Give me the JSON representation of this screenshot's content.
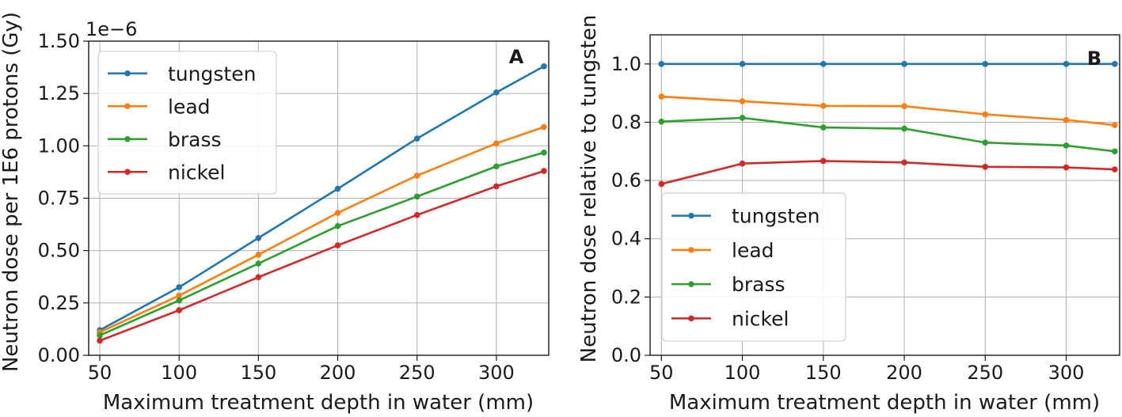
{
  "chart_data": [
    {
      "type": "line",
      "panel_label": "A",
      "x": [
        50,
        100,
        150,
        200,
        250,
        300,
        330
      ],
      "xlim": [
        43,
        333
      ],
      "ylim": [
        0,
        1.5
      ],
      "xticks": [
        "50",
        "100",
        "150",
        "200",
        "250",
        "300"
      ],
      "yticks": [
        "0.00",
        "0.25",
        "0.50",
        "0.75",
        "1.00",
        "1.25",
        "1.50"
      ],
      "y_offset_label": "1e−6",
      "xlabel": "Maximum treatment depth in water (mm)",
      "ylabel": "Neutron dose per 1E6 protons (Gy)",
      "grid": true,
      "legend_position": "upper-left",
      "series": [
        {
          "name": "tungsten",
          "color": "#1f77b4",
          "values": [
            0.12,
            0.325,
            0.56,
            0.795,
            1.035,
            1.255,
            1.38
          ]
        },
        {
          "name": "lead",
          "color": "#ff7f0e",
          "values": [
            0.11,
            0.285,
            0.48,
            0.68,
            0.858,
            1.012,
            1.09
          ]
        },
        {
          "name": "brass",
          "color": "#2ca02c",
          "values": [
            0.095,
            0.262,
            0.438,
            0.617,
            0.758,
            0.902,
            0.968
          ]
        },
        {
          "name": "nickel",
          "color": "#d62728",
          "values": [
            0.07,
            0.215,
            0.373,
            0.525,
            0.67,
            0.807,
            0.88
          ]
        }
      ]
    },
    {
      "type": "line",
      "panel_label": "B",
      "x": [
        50,
        100,
        150,
        200,
        250,
        300,
        330
      ],
      "xlim": [
        43,
        333
      ],
      "ylim": [
        0,
        1.1
      ],
      "xticks": [
        "50",
        "100",
        "150",
        "200",
        "250",
        "300"
      ],
      "yticks": [
        "0.0",
        "0.2",
        "0.4",
        "0.6",
        "0.8",
        "1.0"
      ],
      "xlabel": "Maximum treatment depth in water (mm)",
      "ylabel": "Neutron dose relative to tungsten",
      "grid": true,
      "legend_position": "lower-left",
      "series": [
        {
          "name": "tungsten",
          "color": "#1f77b4",
          "values": [
            1.0,
            1.0,
            1.0,
            1.0,
            1.0,
            1.0,
            1.0
          ]
        },
        {
          "name": "lead",
          "color": "#ff7f0e",
          "values": [
            0.888,
            0.872,
            0.856,
            0.855,
            0.827,
            0.808,
            0.79
          ]
        },
        {
          "name": "brass",
          "color": "#2ca02c",
          "values": [
            0.802,
            0.815,
            0.782,
            0.778,
            0.73,
            0.72,
            0.7
          ]
        },
        {
          "name": "nickel",
          "color": "#d62728",
          "values": [
            0.588,
            0.658,
            0.667,
            0.662,
            0.647,
            0.645,
            0.638
          ]
        }
      ]
    }
  ]
}
